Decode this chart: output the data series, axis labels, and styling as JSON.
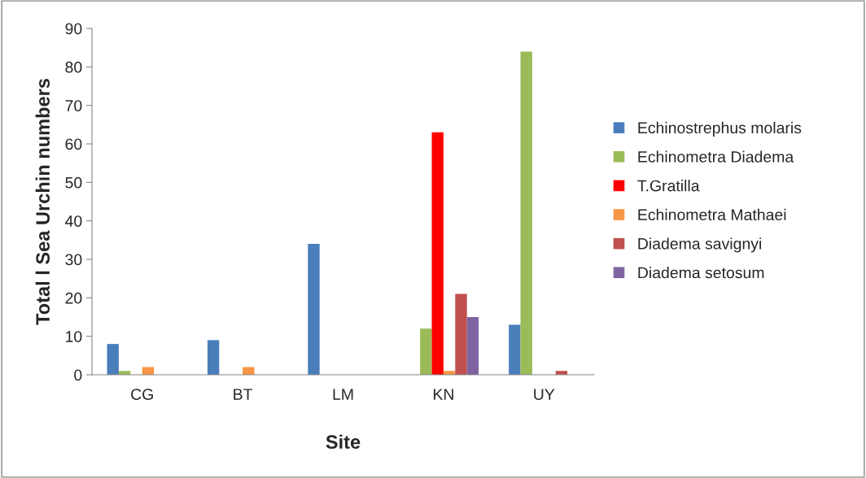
{
  "chart_data": {
    "type": "bar",
    "xlabel": "Site",
    "ylabel": "Total l Sea Urchin numbers",
    "categories": [
      "CG",
      "BT",
      "LM",
      "KN",
      "UY"
    ],
    "series": [
      {
        "name": "Echinostrephus molaris",
        "color": "#4a7ebb",
        "values": [
          8,
          9,
          34,
          0,
          13
        ]
      },
      {
        "name": "Echinometra Diadema",
        "color": "#9bbb59",
        "values": [
          1,
          0,
          0,
          12,
          84
        ]
      },
      {
        "name": "T.Gratilla",
        "color": "#ff0000",
        "values": [
          0,
          0,
          0,
          63,
          0
        ]
      },
      {
        "name": "Echinometra Mathaei",
        "color": "#f79646",
        "values": [
          2,
          2,
          0,
          1,
          0
        ]
      },
      {
        "name": "Diadema savignyi",
        "color": "#c0504d",
        "values": [
          0,
          0,
          0,
          21,
          1
        ]
      },
      {
        "name": "Diadema setosum",
        "color": "#8064a2",
        "values": [
          0,
          0,
          0,
          15,
          0
        ]
      }
    ],
    "ylim": [
      0,
      90
    ],
    "yticks": [
      0,
      10,
      20,
      30,
      40,
      50,
      60,
      70,
      80,
      90
    ],
    "grid": false,
    "legend": "right"
  }
}
